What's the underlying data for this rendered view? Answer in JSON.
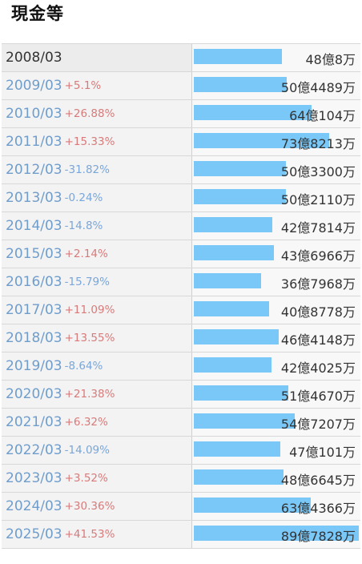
{
  "title": "現金等",
  "colors": {
    "bar": "#7ac8f8",
    "up": "#d97a7a",
    "down": "#7aa6d9"
  },
  "rows": [
    {
      "period": "2008/03",
      "change": "",
      "direction": "",
      "value": "48億8万",
      "amount_oku": 48.0008
    },
    {
      "period": "2009/03",
      "change": "+5.1%",
      "direction": "up",
      "value": "50億4489万",
      "amount_oku": 50.4489
    },
    {
      "period": "2010/03",
      "change": "+26.88%",
      "direction": "up",
      "value": "64億104万",
      "amount_oku": 64.0104
    },
    {
      "period": "2011/03",
      "change": "+15.33%",
      "direction": "up",
      "value": "73億8213万",
      "amount_oku": 73.8213
    },
    {
      "period": "2012/03",
      "change": "-31.82%",
      "direction": "down",
      "value": "50億3300万",
      "amount_oku": 50.33
    },
    {
      "period": "2013/03",
      "change": "-0.24%",
      "direction": "down",
      "value": "50億2110万",
      "amount_oku": 50.211
    },
    {
      "period": "2014/03",
      "change": "-14.8%",
      "direction": "down",
      "value": "42億7814万",
      "amount_oku": 42.7814
    },
    {
      "period": "2015/03",
      "change": "+2.14%",
      "direction": "up",
      "value": "43億6966万",
      "amount_oku": 43.6966
    },
    {
      "period": "2016/03",
      "change": "-15.79%",
      "direction": "down",
      "value": "36億7968万",
      "amount_oku": 36.7968
    },
    {
      "period": "2017/03",
      "change": "+11.09%",
      "direction": "up",
      "value": "40億8778万",
      "amount_oku": 40.8778
    },
    {
      "period": "2018/03",
      "change": "+13.55%",
      "direction": "up",
      "value": "46億4148万",
      "amount_oku": 46.4148
    },
    {
      "period": "2019/03",
      "change": "-8.64%",
      "direction": "down",
      "value": "42億4025万",
      "amount_oku": 42.4025
    },
    {
      "period": "2020/03",
      "change": "+21.38%",
      "direction": "up",
      "value": "51億4670万",
      "amount_oku": 51.467
    },
    {
      "period": "2021/03",
      "change": "+6.32%",
      "direction": "up",
      "value": "54億7207万",
      "amount_oku": 54.7207
    },
    {
      "period": "2022/03",
      "change": "-14.09%",
      "direction": "down",
      "value": "47億101万",
      "amount_oku": 47.0101
    },
    {
      "period": "2023/03",
      "change": "+3.52%",
      "direction": "up",
      "value": "48億6645万",
      "amount_oku": 48.6645
    },
    {
      "period": "2024/03",
      "change": "+30.36%",
      "direction": "up",
      "value": "63億4366万",
      "amount_oku": 63.4366
    },
    {
      "period": "2025/03",
      "change": "+41.53%",
      "direction": "up",
      "value": "89億7828万",
      "amount_oku": 89.7828
    }
  ]
}
